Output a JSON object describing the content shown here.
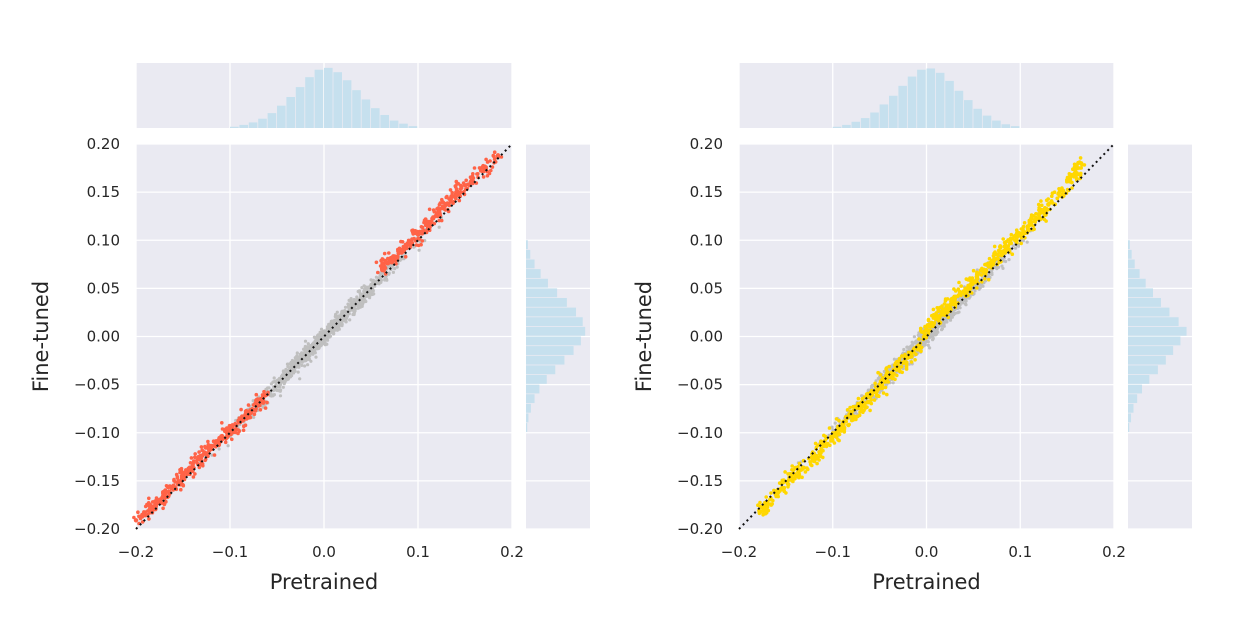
{
  "colors": {
    "panel_bg": "#eaeaf2",
    "grid": "#ffffff",
    "base_points": "#bfbfbf",
    "hist_fill": "#c6e0ee",
    "diagonal": "#111111"
  },
  "chart_data": [
    {
      "type": "scatter",
      "title": "",
      "xlabel": "Pretrained",
      "ylabel": "Fine-tuned",
      "xlim": [
        -0.2,
        0.2
      ],
      "ylim": [
        -0.2,
        0.2
      ],
      "xticks": [
        -0.2,
        -0.1,
        0.0,
        0.1,
        0.2
      ],
      "xtick_labels": [
        "−0.2",
        "−0.1",
        "0.0",
        "0.1",
        "0.2"
      ],
      "yticks": [
        -0.2,
        -0.15,
        -0.1,
        -0.05,
        0.0,
        0.05,
        0.1,
        0.15,
        0.2
      ],
      "ytick_labels": [
        "−0.20",
        "−0.15",
        "−0.10",
        "−0.05",
        "0.00",
        "0.05",
        "0.10",
        "0.15",
        "0.20"
      ],
      "grid": true,
      "reference_line": {
        "style": "dotted",
        "from": [
          -0.2,
          -0.2
        ],
        "to": [
          0.2,
          0.2
        ]
      },
      "series": [
        {
          "color": "#ff6347",
          "trend": "fine-tuned magnitudes larger than pretrained for |x| > ~0.06",
          "points": [
            [
              -0.2,
              -0.191
            ],
            [
              -0.185,
              -0.18
            ],
            [
              -0.175,
              -0.172
            ],
            [
              -0.17,
              -0.165
            ],
            [
              -0.16,
              -0.155
            ],
            [
              -0.15,
              -0.145
            ],
            [
              -0.14,
              -0.135
            ],
            [
              -0.13,
              -0.124
            ],
            [
              -0.12,
              -0.116
            ],
            [
              -0.11,
              -0.107
            ],
            [
              -0.1,
              -0.098
            ],
            [
              -0.09,
              -0.089
            ],
            [
              -0.08,
              -0.08
            ],
            [
              -0.07,
              -0.071
            ],
            [
              -0.062,
              -0.061
            ],
            [
              0.062,
              0.069
            ],
            [
              0.07,
              0.078
            ],
            [
              0.08,
              0.087
            ],
            [
              0.09,
              0.096
            ],
            [
              0.1,
              0.106
            ],
            [
              0.11,
              0.116
            ],
            [
              0.12,
              0.126
            ],
            [
              0.13,
              0.137
            ],
            [
              0.14,
              0.147
            ],
            [
              0.15,
              0.157
            ],
            [
              0.17,
              0.175
            ],
            [
              0.185,
              0.188
            ]
          ]
        },
        {
          "color": "#ffd700",
          "trend": "fine-tuned values offset from pretrained within |x| < ~0.12",
          "points": [
            [
              -0.178,
              -0.182
            ],
            [
              -0.17,
              -0.175
            ],
            [
              -0.155,
              -0.158
            ],
            [
              -0.145,
              -0.147
            ],
            [
              -0.135,
              -0.139
            ],
            [
              -0.12,
              -0.124
            ],
            [
              -0.11,
              -0.114
            ],
            [
              -0.1,
              -0.104
            ],
            [
              -0.09,
              -0.093
            ],
            [
              -0.08,
              -0.083
            ],
            [
              -0.07,
              -0.072
            ],
            [
              -0.06,
              -0.062
            ],
            [
              -0.05,
              -0.052
            ],
            [
              -0.04,
              -0.042
            ],
            [
              -0.03,
              -0.032
            ],
            [
              -0.02,
              -0.022
            ],
            [
              -0.01,
              -0.011
            ],
            [
              0.0,
              0.007
            ],
            [
              0.01,
              0.018
            ],
            [
              0.02,
              0.028
            ],
            [
              0.03,
              0.038
            ],
            [
              0.04,
              0.047
            ],
            [
              0.05,
              0.057
            ],
            [
              0.06,
              0.068
            ],
            [
              0.07,
              0.078
            ],
            [
              0.08,
              0.088
            ],
            [
              0.09,
              0.097
            ],
            [
              0.1,
              0.107
            ],
            [
              0.11,
              0.116
            ],
            [
              0.12,
              0.127
            ],
            [
              0.13,
              0.137
            ],
            [
              0.145,
              0.152
            ],
            [
              0.16,
              0.168
            ],
            [
              0.165,
              0.18
            ]
          ]
        }
      ]
    }
  ],
  "histograms": {
    "bin_centers": [
      -0.095,
      -0.085,
      -0.075,
      -0.065,
      -0.055,
      -0.045,
      -0.035,
      -0.025,
      -0.015,
      -0.005,
      0.005,
      0.015,
      0.025,
      0.035,
      0.045,
      0.055,
      0.065,
      0.075,
      0.085,
      0.095
    ],
    "left_top": [
      0.02,
      0.05,
      0.09,
      0.15,
      0.24,
      0.36,
      0.5,
      0.66,
      0.82,
      0.94,
      0.97,
      0.9,
      0.77,
      0.61,
      0.46,
      0.32,
      0.21,
      0.12,
      0.07,
      0.03
    ],
    "right_top": [
      0.02,
      0.05,
      0.1,
      0.16,
      0.25,
      0.38,
      0.52,
      0.68,
      0.83,
      0.94,
      0.96,
      0.89,
      0.76,
      0.6,
      0.45,
      0.31,
      0.2,
      0.12,
      0.06,
      0.03
    ],
    "left_side": [
      0.02,
      0.04,
      0.08,
      0.14,
      0.22,
      0.34,
      0.48,
      0.63,
      0.78,
      0.9,
      0.97,
      0.93,
      0.82,
      0.67,
      0.51,
      0.36,
      0.24,
      0.14,
      0.07,
      0.03
    ],
    "right_side": [
      0.02,
      0.05,
      0.09,
      0.15,
      0.23,
      0.35,
      0.49,
      0.62,
      0.74,
      0.86,
      0.96,
      0.83,
      0.68,
      0.54,
      0.41,
      0.29,
      0.19,
      0.11,
      0.06,
      0.03
    ]
  }
}
